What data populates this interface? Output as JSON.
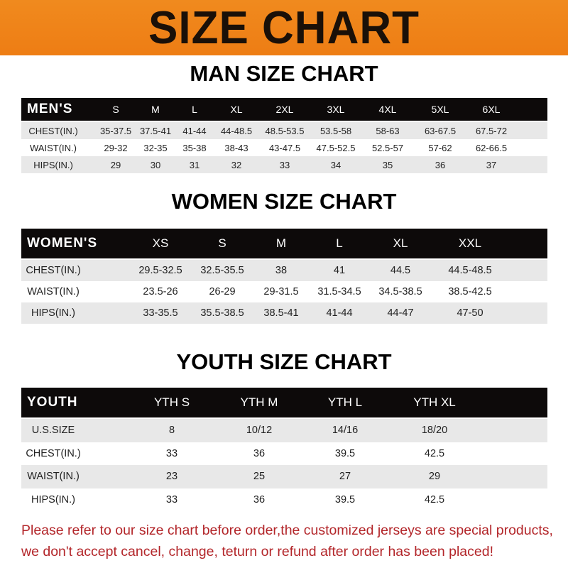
{
  "banner": {
    "title": "SIZE CHART",
    "color": "#ef8419"
  },
  "men": {
    "title": "MAN SIZE CHART",
    "header": [
      "MEN'S",
      "S",
      "M",
      "L",
      "XL",
      "2XL",
      "3XL",
      "4XL",
      "5XL",
      "6XL"
    ],
    "rows": [
      [
        "CHEST(IN.)",
        "35-37.5",
        "37.5-41",
        "41-44",
        "44-48.5",
        "48.5-53.5",
        "53.5-58",
        "58-63",
        "63-67.5",
        "67.5-72"
      ],
      [
        "WAIST(IN.)",
        "29-32",
        "32-35",
        "35-38",
        "38-43",
        "43-47.5",
        "47.5-52.5",
        "52.5-57",
        "57-62",
        "62-66.5"
      ],
      [
        "HIPS(IN.)",
        "29",
        "30",
        "31",
        "32",
        "33",
        "34",
        "35",
        "36",
        "37"
      ]
    ]
  },
  "women": {
    "title": "WOMEN SIZE CHART",
    "header": [
      "WOMEN'S",
      "XS",
      "S",
      "M",
      "L",
      "XL",
      "XXL"
    ],
    "rows": [
      [
        "CHEST(IN.)",
        "29.5-32.5",
        "32.5-35.5",
        "38",
        "41",
        "44.5",
        "44.5-48.5"
      ],
      [
        "WAIST(IN.)",
        "23.5-26",
        "26-29",
        "29-31.5",
        "31.5-34.5",
        "34.5-38.5",
        "38.5-42.5"
      ],
      [
        "HIPS(IN.)",
        "33-35.5",
        "35.5-38.5",
        "38.5-41",
        "41-44",
        "44-47",
        "47-50"
      ]
    ]
  },
  "youth": {
    "title": "YOUTH SIZE CHART",
    "header": [
      "YOUTH",
      "YTH S",
      "YTH M",
      "YTH L",
      "YTH XL"
    ],
    "rows": [
      [
        "U.S.SIZE",
        "8",
        "10/12",
        "14/16",
        "18/20"
      ],
      [
        "CHEST(IN.)",
        "33",
        "36",
        "39.5",
        "42.5"
      ],
      [
        "WAIST(IN.)",
        "23",
        "25",
        "27",
        "29"
      ],
      [
        "HIPS(IN.)",
        "33",
        "36",
        "39.5",
        "42.5"
      ]
    ]
  },
  "note": {
    "line1": "Please refer to our size chart before order,the customized jerseys are special products,",
    "line2": "we don't accept cancel, change, teturn or refund after order has been placed!",
    "color": "#b3262a"
  }
}
